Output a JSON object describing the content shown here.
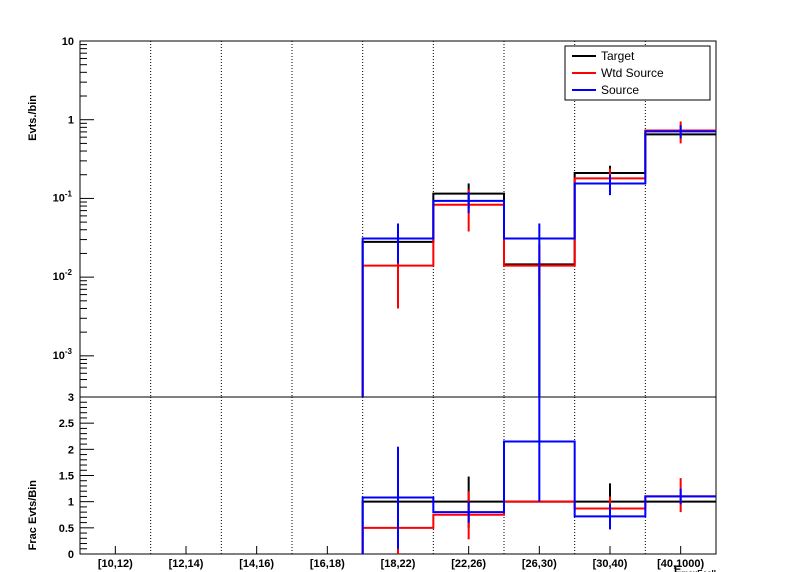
{
  "chart_data": [
    {
      "type": "step-histogram",
      "panel": "top",
      "ylabel": "Evts./bin",
      "yscale": "log",
      "ylim": [
        0.0003,
        10
      ],
      "y_tick_labels": {
        "exp_base": "10",
        "exps": [
          "-3",
          "-2",
          "-1"
        ],
        "ten": "10",
        "one": "1"
      },
      "categories": [
        "[10,12)",
        "[12,14)",
        "[14,16)",
        "[16,18)",
        "[18,22)",
        "[22,26)",
        "[26,30)",
        "[30,40)",
        "[40,1000)"
      ],
      "legend": {
        "position": "top-right",
        "entries": [
          "Target",
          "Wtd Source",
          "Source"
        ]
      },
      "series": [
        {
          "name": "Target",
          "color": "#000000",
          "values": [
            0,
            0,
            0,
            0,
            0.028,
            0.115,
            0.0145,
            0.21,
            0.65
          ],
          "err_lo": [
            null,
            null,
            null,
            null,
            null,
            0.075,
            0.0003,
            0.16,
            null
          ],
          "err_hi": [
            null,
            null,
            null,
            null,
            null,
            0.155,
            0.0145,
            0.26,
            null
          ]
        },
        {
          "name": "Wtd Source",
          "color": "#ff0000",
          "values": [
            0,
            0,
            0,
            0,
            0.014,
            0.083,
            0.014,
            0.18,
            0.73
          ],
          "err_lo": [
            null,
            null,
            null,
            null,
            0.004,
            0.038,
            0.0055,
            0.12,
            0.5
          ],
          "err_hi": [
            null,
            null,
            null,
            null,
            0.03,
            0.13,
            0.026,
            0.24,
            0.95
          ]
        },
        {
          "name": "Source",
          "color": "#0000ff",
          "values": [
            0,
            0,
            0,
            0,
            0.031,
            0.093,
            0.031,
            0.155,
            0.71
          ],
          "err_lo": [
            null,
            null,
            null,
            null,
            0.015,
            0.065,
            0.0003,
            0.11,
            0.58
          ],
          "err_hi": [
            null,
            null,
            null,
            null,
            0.048,
            0.12,
            0.048,
            0.2,
            0.85
          ]
        }
      ]
    },
    {
      "type": "step-histogram",
      "panel": "bottom",
      "ylabel": "Frac Evts/Bin",
      "xlabel": "E_maxEcell",
      "ylim": [
        0,
        3
      ],
      "y_ticks": [
        "0",
        "0.5",
        "1",
        "1.5",
        "2",
        "2.5",
        "3"
      ],
      "categories": [
        "[10,12)",
        "[12,14)",
        "[14,16)",
        "[16,18)",
        "[18,22)",
        "[22,26)",
        "[26,30)",
        "[30,40)",
        "[40,1000)"
      ],
      "series": [
        {
          "name": "Target",
          "color": "#000000",
          "values": [
            0,
            0,
            0,
            0,
            1.0,
            1.0,
            1.0,
            1.0,
            1.0
          ],
          "err_lo": [
            null,
            null,
            null,
            null,
            null,
            0.5,
            null,
            0.62,
            null
          ],
          "err_hi": [
            null,
            null,
            null,
            null,
            null,
            1.48,
            null,
            1.35,
            null
          ]
        },
        {
          "name": "Wtd Source",
          "color": "#ff0000",
          "values": [
            0,
            0,
            0,
            0,
            0.5,
            0.75,
            1.0,
            0.87,
            1.1
          ],
          "err_lo": [
            null,
            null,
            null,
            null,
            0.0,
            0.28,
            null,
            0.62,
            0.8
          ],
          "err_hi": [
            null,
            null,
            null,
            null,
            1.05,
            1.2,
            null,
            1.1,
            1.45
          ]
        },
        {
          "name": "Source",
          "color": "#0000ff",
          "values": [
            0,
            0,
            0,
            0,
            1.08,
            0.8,
            2.15,
            0.72,
            1.1
          ],
          "err_lo": [
            null,
            null,
            null,
            null,
            0.1,
            0.6,
            1.0,
            0.47,
            0.95
          ],
          "err_hi": [
            null,
            null,
            null,
            null,
            2.05,
            1.0,
            3.0,
            0.95,
            1.25
          ]
        }
      ]
    }
  ]
}
